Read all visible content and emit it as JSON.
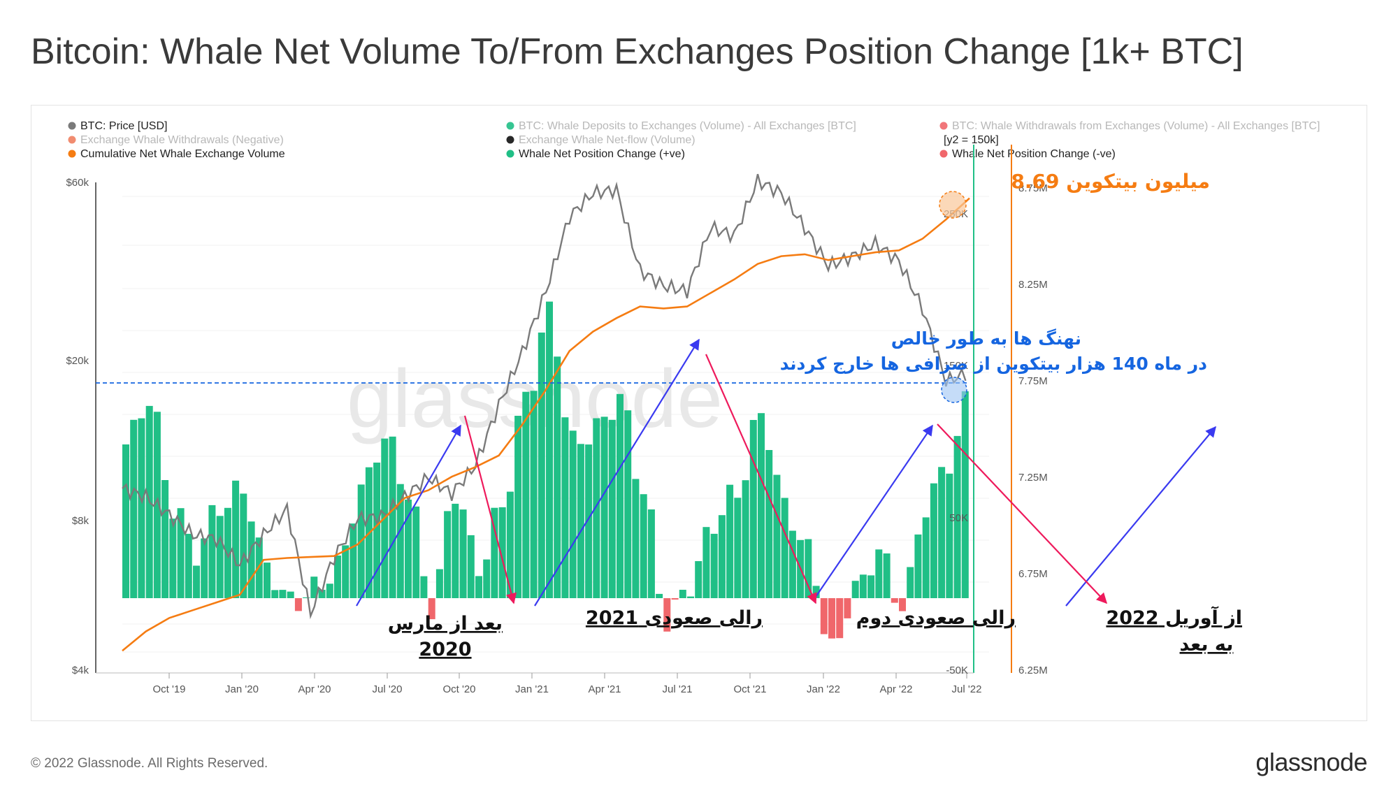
{
  "title": "Bitcoin: Whale Net Volume To/From Exchanges Position Change [1k+ BTC]",
  "footer": {
    "copyright": "© 2022 Glassnode. All Rights Reserved.",
    "logo": "glassnode"
  },
  "watermark": "glassnode",
  "colors": {
    "price": "#7a7a7a",
    "positive": "#20bf86",
    "negative": "#f0676b",
    "cumulative": "#f57c12",
    "up_arrow": "#3a3af0",
    "down_arrow": "#ee1a5c",
    "annotation_blue": "#1565e0",
    "annotation_orange": "#f57c12"
  },
  "legend": [
    {
      "label": "BTC: Price [USD]",
      "color": "#7a7a7a",
      "faded": false
    },
    {
      "label": "BTC: Whale Deposits to Exchanges (Volume) - All Exchanges [BTC]",
      "color": "#20bf86",
      "faded": true
    },
    {
      "label": "BTC: Whale Withdrawals from Exchanges (Volume) - All Exchanges [BTC]",
      "color": "#f0676b",
      "faded": true
    },
    {
      "label": "Exchange Whale Withdrawals (Negative)",
      "color": "#f08060",
      "faded": true
    },
    {
      "label": "Exchange Whale Net-flow (Volume)",
      "color": "#111111",
      "faded": true
    },
    {
      "label": "[y2 = 150k]",
      "color": "",
      "faded": false
    },
    {
      "label": "Cumulative Net Whale Exchange Volume",
      "color": "#f57c12",
      "faded": false
    },
    {
      "label": "Whale Net Position Change (+ve)",
      "color": "#20bf86",
      "faded": false
    },
    {
      "label": "Whale Net Position Change (-ve)",
      "color": "#f0676b",
      "faded": false
    }
  ],
  "annotations": {
    "total": "8.69 میلیون بیتکوین",
    "whales_line1": "نهنگ ها به طور خالص",
    "whales_line2": "در ماه 140 هزار بیتکوین از صرافی ها خارج کردند",
    "after_march_1": "بعد از مارس",
    "after_march_2": "2020",
    "rally_2021": "رالی صعودی 2021",
    "second_rally": "رالی صعودی دوم",
    "april_1": "از آوریل 2022",
    "april_2": "به بعد"
  },
  "chart_data": {
    "type": "bar",
    "x_ticks": [
      "Oct '19",
      "Jan '20",
      "Apr '20",
      "Jul '20",
      "Oct '20",
      "Jan '21",
      "Apr '21",
      "Jul '21",
      "Oct '21",
      "Jan '22",
      "Apr '22",
      "Jul '22"
    ],
    "axes": {
      "price_left": {
        "scale": "log",
        "ticks": [
          "$4k",
          "$8k",
          "$20k",
          "$60k"
        ],
        "range": [
          4000,
          70000
        ]
      },
      "net_change_right": {
        "ticks": [
          "-50K",
          "50K",
          "150K",
          "250K"
        ],
        "range": [
          -50000,
          260000
        ]
      },
      "cumulative_far_right": {
        "ticks": [
          "6.25M",
          "6.75M",
          "7.25M",
          "7.75M",
          "8.25M",
          "8.75M"
        ],
        "range": [
          6250000,
          8750000
        ]
      }
    },
    "reference_line": {
      "axis": "net_change_right",
      "value": 140000
    },
    "series": [
      {
        "name": "Whale Net Position Change (+ve)",
        "values_by_month": {
          "2019-07": 100000,
          "2019-08": 130000,
          "2019-09": 60000,
          "2019-10": 30000,
          "2019-11": 60000,
          "2019-12": 70000,
          "2020-01": 20000,
          "2020-02": -3000,
          "2020-03": 5000,
          "2020-04": 20000,
          "2020-05": 70000,
          "2020-06": 105000,
          "2020-07": 70000,
          "2020-08": -5000,
          "2020-09": 70000,
          "2020-10": 20000,
          "2020-11": 60000,
          "2020-12": 130000,
          "2021-01": 185000,
          "2021-02": 100000,
          "2021-03": 110000,
          "2021-04": 130000,
          "2021-05": 70000,
          "2021-06": -15000,
          "2021-07": 10000,
          "2021-08": 50000,
          "2021-09": 70000,
          "2021-10": 120000,
          "2021-11": 60000,
          "2021-12": 30000,
          "2022-01": -35000,
          "2022-02": 5000,
          "2022-03": 30000,
          "2022-04": -5000,
          "2022-05": 60000,
          "2022-06": 90000,
          "2022-07": 140000
        }
      },
      {
        "name": "BTC: Price [USD]",
        "values_by_month": {
          "2019-07": 11000,
          "2019-08": 10500,
          "2019-09": 9500,
          "2019-10": 8500,
          "2019-11": 8300,
          "2019-12": 7200,
          "2020-01": 8500,
          "2020-02": 9800,
          "2020-03": 5500,
          "2020-04": 7500,
          "2020-05": 9300,
          "2020-06": 9400,
          "2020-07": 10500,
          "2020-08": 11700,
          "2020-09": 10700,
          "2020-10": 12500,
          "2020-11": 17500,
          "2020-12": 23500,
          "2021-01": 33000,
          "2021-02": 50000,
          "2021-03": 57000,
          "2021-04": 58000,
          "2021-05": 37000,
          "2021-06": 34000,
          "2021-07": 33000,
          "2021-08": 47000,
          "2021-09": 45000,
          "2021-10": 61000,
          "2021-11": 57000,
          "2021-12": 47000,
          "2022-01": 38000,
          "2022-02": 40000,
          "2022-03": 43000,
          "2022-04": 39000,
          "2022-05": 30000,
          "2022-06": 20000,
          "2022-07": 21000
        }
      },
      {
        "name": "Cumulative Net Whale Exchange Volume",
        "values_by_month": {
          "2019-07": 6350000,
          "2019-08": 6450000,
          "2019-09": 6520000,
          "2019-10": 6560000,
          "2019-11": 6600000,
          "2019-12": 6640000,
          "2020-01": 6820000,
          "2020-02": 6830000,
          "2020-03": 6835000,
          "2020-04": 6840000,
          "2020-05": 6900000,
          "2020-06": 7020000,
          "2020-07": 7140000,
          "2020-08": 7180000,
          "2020-09": 7250000,
          "2020-10": 7300000,
          "2020-11": 7360000,
          "2020-12": 7520000,
          "2021-01": 7700000,
          "2021-02": 7900000,
          "2021-03": 8000000,
          "2021-04": 8070000,
          "2021-05": 8130000,
          "2021-06": 8120000,
          "2021-07": 8130000,
          "2021-08": 8200000,
          "2021-09": 8270000,
          "2021-10": 8350000,
          "2021-11": 8390000,
          "2021-12": 8400000,
          "2022-01": 8370000,
          "2022-02": 8390000,
          "2022-03": 8410000,
          "2022-04": 8420000,
          "2022-05": 8480000,
          "2022-06": 8580000,
          "2022-07": 8690000
        }
      }
    ]
  }
}
